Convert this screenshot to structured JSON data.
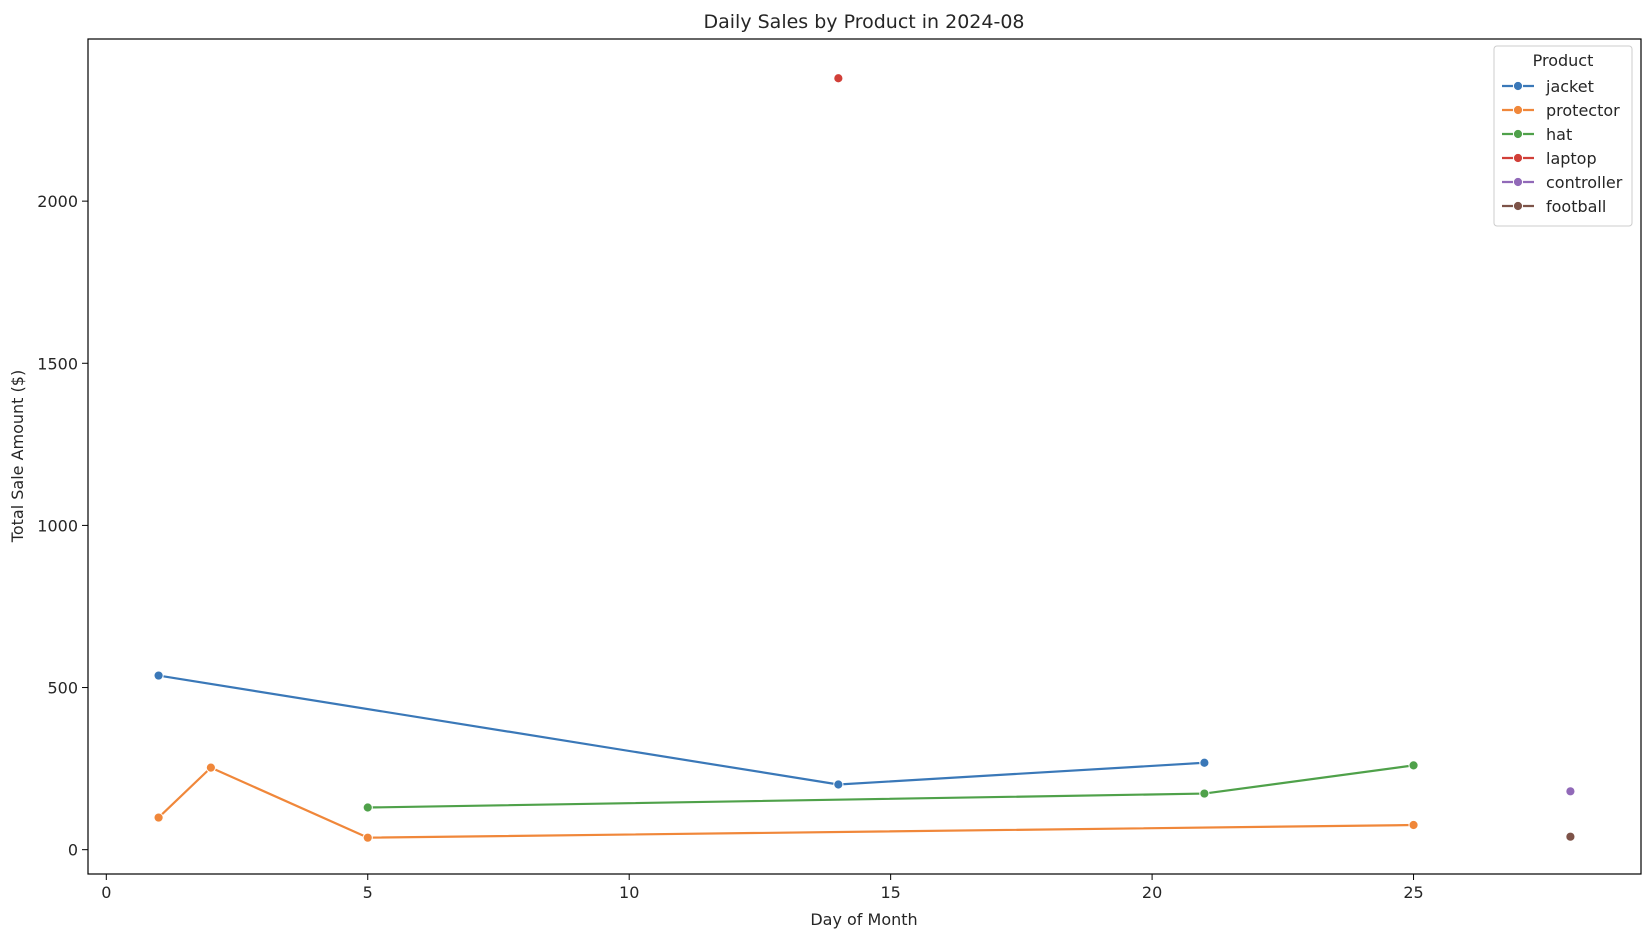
{
  "chart_data": {
    "type": "line",
    "title": "Daily Sales by Product in 2024-08",
    "xlabel": "Day of Month",
    "ylabel": "Total Sale Amount ($)",
    "xlim": [
      -0.35,
      29.35
    ],
    "ylim": [
      -75,
      2500
    ],
    "xticks": [
      0,
      5,
      10,
      15,
      20,
      25
    ],
    "yticks": [
      0,
      500,
      1000,
      1500,
      2000
    ],
    "grid": false,
    "legend": {
      "title": "Product",
      "placement": "top-right"
    },
    "series": [
      {
        "name": "jacket",
        "color": "#3a78b8",
        "x": [
          1,
          14,
          21
        ],
        "y": [
          537,
          201,
          268
        ]
      },
      {
        "name": "protector",
        "color": "#f0873a",
        "x": [
          1,
          2,
          5,
          25
        ],
        "y": [
          99,
          253,
          37,
          76
        ]
      },
      {
        "name": "hat",
        "color": "#4fa14a",
        "x": [
          5,
          21,
          25
        ],
        "y": [
          130,
          173,
          260
        ]
      },
      {
        "name": "laptop",
        "color": "#d13f38",
        "x": [
          14
        ],
        "y": [
          2379
        ]
      },
      {
        "name": "controller",
        "color": "#9169b8",
        "x": [
          28
        ],
        "y": [
          180
        ]
      },
      {
        "name": "football",
        "color": "#7d5348",
        "x": [
          28
        ],
        "y": [
          40
        ]
      }
    ]
  }
}
